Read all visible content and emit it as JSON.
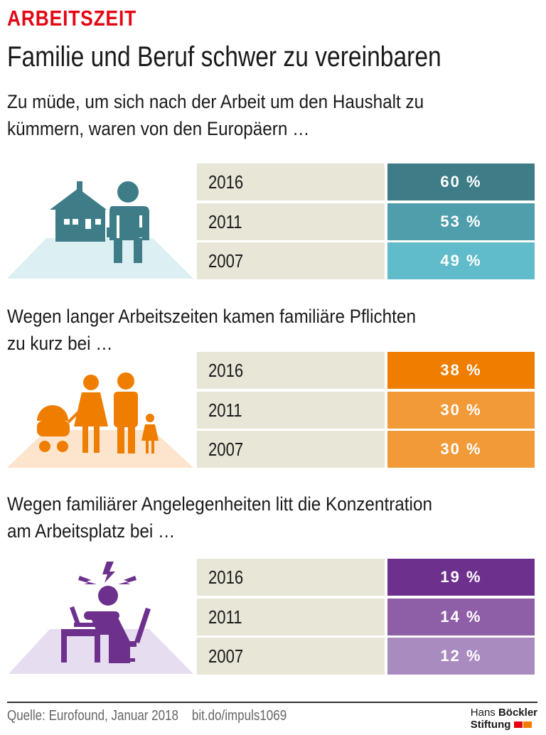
{
  "header": {
    "kicker": "ARBEITSZEIT",
    "title": "Familie und Beruf schwer zu vereinbaren"
  },
  "chart_data": [
    {
      "type": "table",
      "title": "Zu müde, um sich nach der Arbeit um den Haushalt zu kümmern, waren von den Europäern …",
      "title_lines": [
        "Zu müde, um sich nach der Arbeit um den Haushalt zu",
        "kümmern, waren von den Europäern …"
      ],
      "categories": [
        "2016",
        "2011",
        "2007"
      ],
      "values": [
        60,
        53,
        49
      ],
      "labels": [
        "60 %",
        "53 %",
        "49 %"
      ],
      "colors": [
        "#3e7d87",
        "#4f9eab",
        "#60bccb"
      ],
      "icon": "tired-person-house-icon"
    },
    {
      "type": "table",
      "title": "Wegen langer Arbeitszeiten kamen familiäre Pflichten zu kurz bei …",
      "title_lines": [
        "Wegen langer Arbeitszeiten kamen familiäre Pflichten",
        "zu kurz bei …"
      ],
      "categories": [
        "2016",
        "2011",
        "2007"
      ],
      "values": [
        38,
        30,
        30
      ],
      "labels": [
        "38 %",
        "30 %",
        "30 %"
      ],
      "colors": [
        "#ef7d00",
        "#f29a38",
        "#f29a38"
      ],
      "icon": "family-icon"
    },
    {
      "type": "table",
      "title": "Wegen familiärer Angelegenheiten litt die Konzentration am Arbeitsplatz bei …",
      "title_lines": [
        "Wegen familiärer Angelegenheiten litt die Konzentration",
        "am Arbeitsplatz bei …"
      ],
      "categories": [
        "2016",
        "2011",
        "2007"
      ],
      "values": [
        19,
        14,
        12
      ],
      "labels": [
        "19 %",
        "14 %",
        "12 %"
      ],
      "colors": [
        "#6d318d",
        "#8e5ea6",
        "#a98bc0"
      ],
      "icon": "stressed-worker-icon"
    }
  ],
  "footer": {
    "source": "Quelle: Eurofound, Januar 2018",
    "link": "bit.do/impuls1069",
    "logo_line1_a": "Hans",
    "logo_line1_b": "Böckler",
    "logo_line2": "Stiftung"
  }
}
